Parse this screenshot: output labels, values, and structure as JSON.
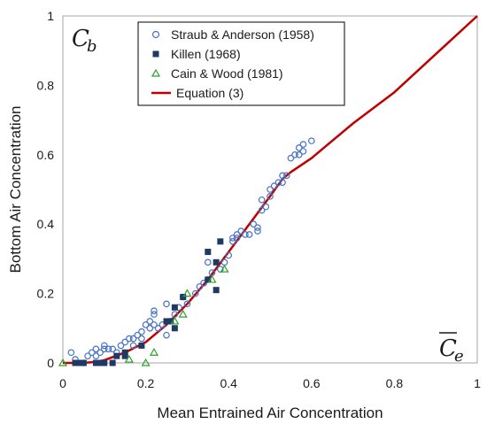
{
  "chart_data": {
    "type": "scatter",
    "xlabel": "Mean Entrained Air Concentration",
    "ylabel": "Bottom Air Concentration",
    "xlim": [
      0,
      1
    ],
    "ylim": [
      0,
      1
    ],
    "x_ticks": [
      "0",
      "0.2",
      "0.4",
      "0.6",
      "0.8",
      "1"
    ],
    "y_ticks": [
      "0",
      "0.2",
      "0.4",
      "0.6",
      "0.8",
      "1"
    ],
    "grid": false,
    "legend_position": "top-center",
    "corner_labels": {
      "top_left_main": "C",
      "top_left_sub": "b",
      "bottom_right_main": "C",
      "bottom_right_sub": "e"
    },
    "colors": {
      "straub": "#4472c4",
      "killen": "#1f3864",
      "cain": "#2ca02c",
      "equation": "#c00000"
    },
    "series": [
      {
        "name": "Straub & Anderson (1958)",
        "marker": "circle",
        "points": [
          [
            0.02,
            0.03
          ],
          [
            0.03,
            0.01
          ],
          [
            0.05,
            0.0
          ],
          [
            0.06,
            0.02
          ],
          [
            0.07,
            0.03
          ],
          [
            0.08,
            0.04
          ],
          [
            0.08,
            0.02
          ],
          [
            0.09,
            0.03
          ],
          [
            0.1,
            0.04
          ],
          [
            0.1,
            0.05
          ],
          [
            0.11,
            0.04
          ],
          [
            0.12,
            0.04
          ],
          [
            0.13,
            0.03
          ],
          [
            0.14,
            0.05
          ],
          [
            0.15,
            0.06
          ],
          [
            0.16,
            0.07
          ],
          [
            0.17,
            0.07
          ],
          [
            0.17,
            0.05
          ],
          [
            0.18,
            0.08
          ],
          [
            0.19,
            0.09
          ],
          [
            0.19,
            0.07
          ],
          [
            0.2,
            0.11
          ],
          [
            0.21,
            0.1
          ],
          [
            0.21,
            0.12
          ],
          [
            0.22,
            0.11
          ],
          [
            0.22,
            0.14
          ],
          [
            0.22,
            0.15
          ],
          [
            0.23,
            0.1
          ],
          [
            0.24,
            0.11
          ],
          [
            0.25,
            0.08
          ],
          [
            0.25,
            0.17
          ],
          [
            0.26,
            0.12
          ],
          [
            0.27,
            0.14
          ],
          [
            0.28,
            0.16
          ],
          [
            0.29,
            0.19
          ],
          [
            0.3,
            0.17
          ],
          [
            0.32,
            0.2
          ],
          [
            0.33,
            0.22
          ],
          [
            0.34,
            0.23
          ],
          [
            0.35,
            0.24
          ],
          [
            0.35,
            0.29
          ],
          [
            0.36,
            0.26
          ],
          [
            0.38,
            0.27
          ],
          [
            0.39,
            0.29
          ],
          [
            0.4,
            0.31
          ],
          [
            0.41,
            0.35
          ],
          [
            0.41,
            0.36
          ],
          [
            0.42,
            0.37
          ],
          [
            0.42,
            0.36
          ],
          [
            0.43,
            0.38
          ],
          [
            0.44,
            0.37
          ],
          [
            0.45,
            0.37
          ],
          [
            0.46,
            0.4
          ],
          [
            0.47,
            0.38
          ],
          [
            0.47,
            0.39
          ],
          [
            0.48,
            0.44
          ],
          [
            0.48,
            0.47
          ],
          [
            0.49,
            0.45
          ],
          [
            0.5,
            0.48
          ],
          [
            0.5,
            0.5
          ],
          [
            0.51,
            0.51
          ],
          [
            0.52,
            0.52
          ],
          [
            0.53,
            0.54
          ],
          [
            0.53,
            0.52
          ],
          [
            0.54,
            0.54
          ],
          [
            0.55,
            0.59
          ],
          [
            0.56,
            0.6
          ],
          [
            0.57,
            0.6
          ],
          [
            0.57,
            0.62
          ],
          [
            0.58,
            0.61
          ],
          [
            0.58,
            0.63
          ],
          [
            0.6,
            0.64
          ]
        ]
      },
      {
        "name": "Killen (1968)",
        "marker": "square",
        "points": [
          [
            0.03,
            0.0
          ],
          [
            0.04,
            0.0
          ],
          [
            0.05,
            0.0
          ],
          [
            0.08,
            0.0
          ],
          [
            0.09,
            0.0
          ],
          [
            0.1,
            0.0
          ],
          [
            0.12,
            0.0
          ],
          [
            0.13,
            0.02
          ],
          [
            0.15,
            0.03
          ],
          [
            0.15,
            0.02
          ],
          [
            0.19,
            0.05
          ],
          [
            0.25,
            0.12
          ],
          [
            0.26,
            0.12
          ],
          [
            0.27,
            0.1
          ],
          [
            0.27,
            0.16
          ],
          [
            0.29,
            0.19
          ],
          [
            0.35,
            0.32
          ],
          [
            0.35,
            0.24
          ],
          [
            0.37,
            0.29
          ],
          [
            0.37,
            0.21
          ],
          [
            0.38,
            0.35
          ]
        ]
      },
      {
        "name": "Cain & Wood (1981)",
        "marker": "triangle",
        "points": [
          [
            0.0,
            0.0
          ],
          [
            0.16,
            0.01
          ],
          [
            0.2,
            0.0
          ],
          [
            0.22,
            0.03
          ],
          [
            0.27,
            0.12
          ],
          [
            0.29,
            0.14
          ],
          [
            0.3,
            0.2
          ],
          [
            0.36,
            0.24
          ],
          [
            0.39,
            0.27
          ]
        ]
      },
      {
        "name": "Equation (3)",
        "marker": "line",
        "points": [
          [
            0.0,
            0.0
          ],
          [
            0.05,
            0.0
          ],
          [
            0.08,
            0.003
          ],
          [
            0.1,
            0.008
          ],
          [
            0.15,
            0.03
          ],
          [
            0.2,
            0.06
          ],
          [
            0.25,
            0.11
          ],
          [
            0.3,
            0.17
          ],
          [
            0.35,
            0.24
          ],
          [
            0.4,
            0.32
          ],
          [
            0.45,
            0.4
          ],
          [
            0.5,
            0.48
          ],
          [
            0.53,
            0.53
          ],
          [
            0.55,
            0.55
          ],
          [
            0.6,
            0.59
          ],
          [
            0.7,
            0.69
          ],
          [
            0.8,
            0.78
          ],
          [
            0.9,
            0.89
          ],
          [
            1.0,
            1.0
          ]
        ]
      }
    ]
  }
}
